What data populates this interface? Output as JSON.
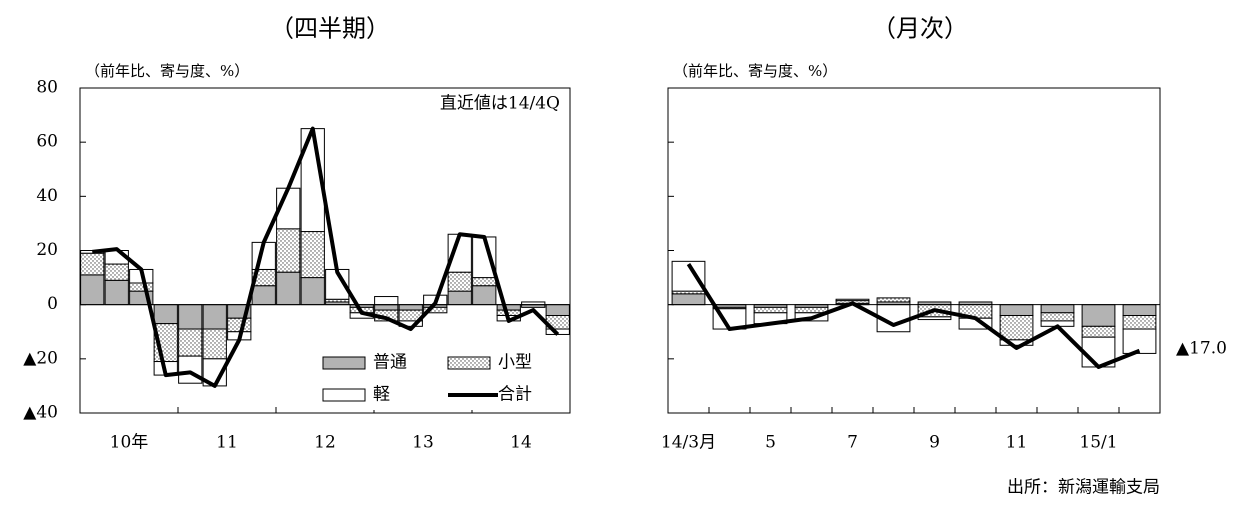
{
  "chart_data": [
    {
      "type": "bar",
      "title": "（四半期）",
      "ylabel": "（前年比、寄与度、%）",
      "annotation": "直近値は14/4Q",
      "categories": [
        "10年",
        null,
        null,
        null,
        "11",
        null,
        null,
        null,
        "12",
        null,
        null,
        null,
        "13",
        null,
        null,
        null,
        "14",
        null,
        null,
        null
      ],
      "ylim": [
        -40,
        80
      ],
      "yticks": [
        80,
        60,
        40,
        20,
        0,
        {
          "value": -20,
          "label": "▲20"
        },
        {
          "value": -40,
          "label": "▲40"
        }
      ],
      "legend": "lower right",
      "series": [
        {
          "name": "普通",
          "color": "#b3b3b3",
          "values": [
            11,
            9,
            5,
            -7,
            -9,
            -9,
            -5,
            7,
            12,
            10,
            1,
            -1,
            -2,
            -2,
            -1,
            5,
            7,
            -2,
            -1,
            -4
          ]
        },
        {
          "name": "小型",
          "color": "#ffffff",
          "pattern": "dots",
          "values": [
            8,
            6,
            3,
            -14,
            -10,
            -11,
            -5,
            6,
            16,
            17,
            1,
            -2,
            -4,
            -4,
            -2,
            7,
            3,
            -2,
            0,
            -5
          ]
        },
        {
          "name": "軽",
          "color": "#ffffff",
          "values": [
            1,
            5,
            5,
            -5,
            -10,
            -10,
            -3,
            10,
            15,
            38,
            11,
            -2,
            3,
            -2,
            3.5,
            14,
            15,
            -2,
            1,
            -2
          ]
        },
        {
          "name": "合計",
          "type": "line",
          "color": "#000000",
          "values": [
            19.5,
            20.5,
            13,
            -26,
            -25,
            -30,
            -13,
            23,
            43,
            65,
            12,
            -3,
            -5,
            -9,
            0.5,
            26,
            25,
            -6,
            -2,
            -11
          ]
        }
      ]
    },
    {
      "type": "bar",
      "title": "（月次）",
      "ylabel": "（前年比、寄与度、%）",
      "annotation": "▲17.0",
      "source": "出所：新潟運輸支局",
      "categories": [
        "14/3月",
        null,
        "5",
        null,
        "7",
        null,
        "9",
        null,
        "11",
        null,
        "15/1",
        null
      ],
      "ylim": [
        -40,
        80
      ],
      "yticks": [
        80,
        60,
        40,
        20,
        0,
        -20,
        -40
      ],
      "ytick_labels": false,
      "series": [
        {
          "color": "#b3b3b3",
          "values": [
            4,
            -1,
            -1,
            -1,
            0.5,
            1,
            1,
            1,
            -4,
            -3,
            -8,
            -4
          ]
        },
        {
          "color": "#ffffff",
          "pattern": "dots",
          "values": [
            1,
            -0.5,
            -2,
            -2,
            1,
            1.5,
            -4.5,
            -5,
            -9,
            -3,
            -4,
            -5
          ]
        },
        {
          "color": "#ffffff",
          "values": [
            11,
            -7.5,
            -4,
            -3,
            0.5,
            -10,
            -1,
            -4,
            -2,
            -2,
            -11,
            -9
          ]
        },
        {
          "type": "line",
          "color": "#000000",
          "values": [
            15,
            -9,
            -7,
            -5,
            0.5,
            -7.5,
            -2,
            -5,
            -16,
            -8,
            -23,
            -17
          ]
        }
      ]
    }
  ]
}
